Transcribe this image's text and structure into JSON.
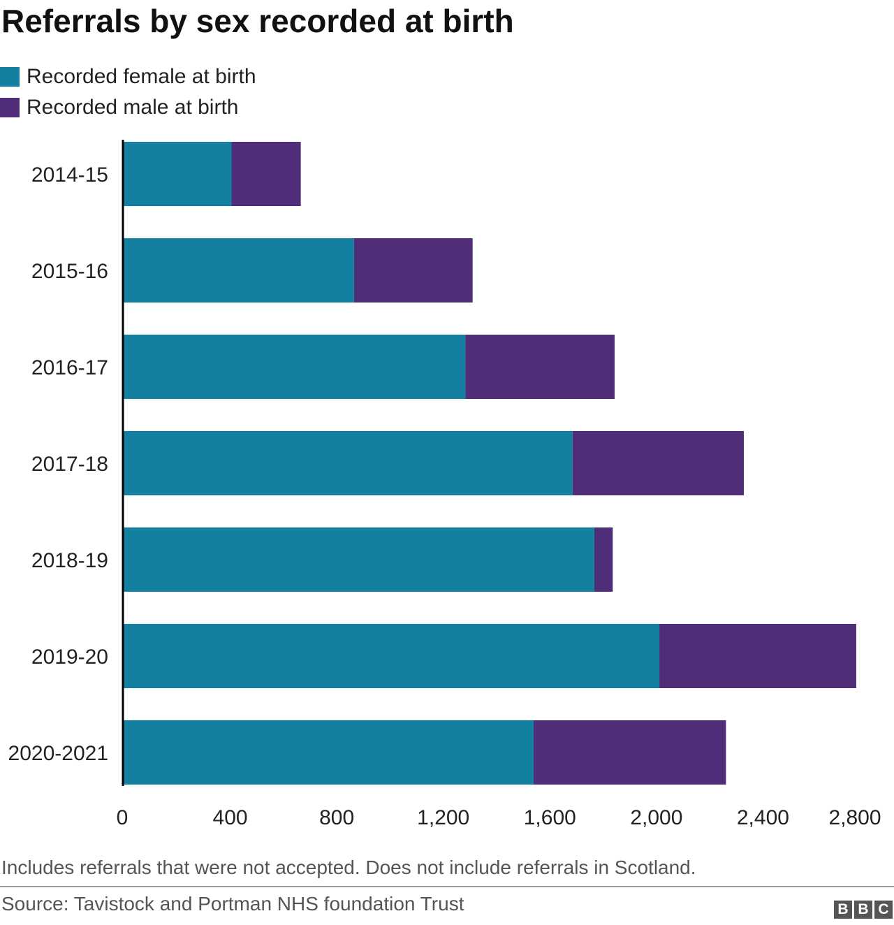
{
  "chart_data": {
    "type": "bar",
    "orientation": "horizontal",
    "stacked": true,
    "title": "Referrals by sex recorded at birth",
    "categories": [
      "2014-15",
      "2015-16",
      "2016-17",
      "2017-18",
      "2018-19",
      "2019-20",
      "2020-2021"
    ],
    "series": [
      {
        "name": "Recorded female at birth",
        "color": "#1380A1",
        "values": [
          405,
          865,
          1283,
          1685,
          1767,
          2011,
          1539
        ]
      },
      {
        "name": "Recorded male at birth",
        "color": "#4F2D78",
        "values": [
          260,
          445,
          560,
          643,
          69,
          739,
          722
        ]
      }
    ],
    "xlim": [
      0,
      2800
    ],
    "xticks": [
      0,
      400,
      800,
      1200,
      1600,
      2000,
      2400,
      2800
    ],
    "xtick_labels": [
      "0",
      "400",
      "800",
      "1,200",
      "1,600",
      "2,000",
      "2,400",
      "2,800"
    ],
    "legend_position": "top-left",
    "grid": false
  },
  "footer": {
    "note": "Includes referrals that were not accepted. Does not include referrals in Scotland.",
    "source": "Source: Tavistock and Portman NHS foundation Trust",
    "logo_letters": [
      "B",
      "B",
      "C"
    ]
  }
}
